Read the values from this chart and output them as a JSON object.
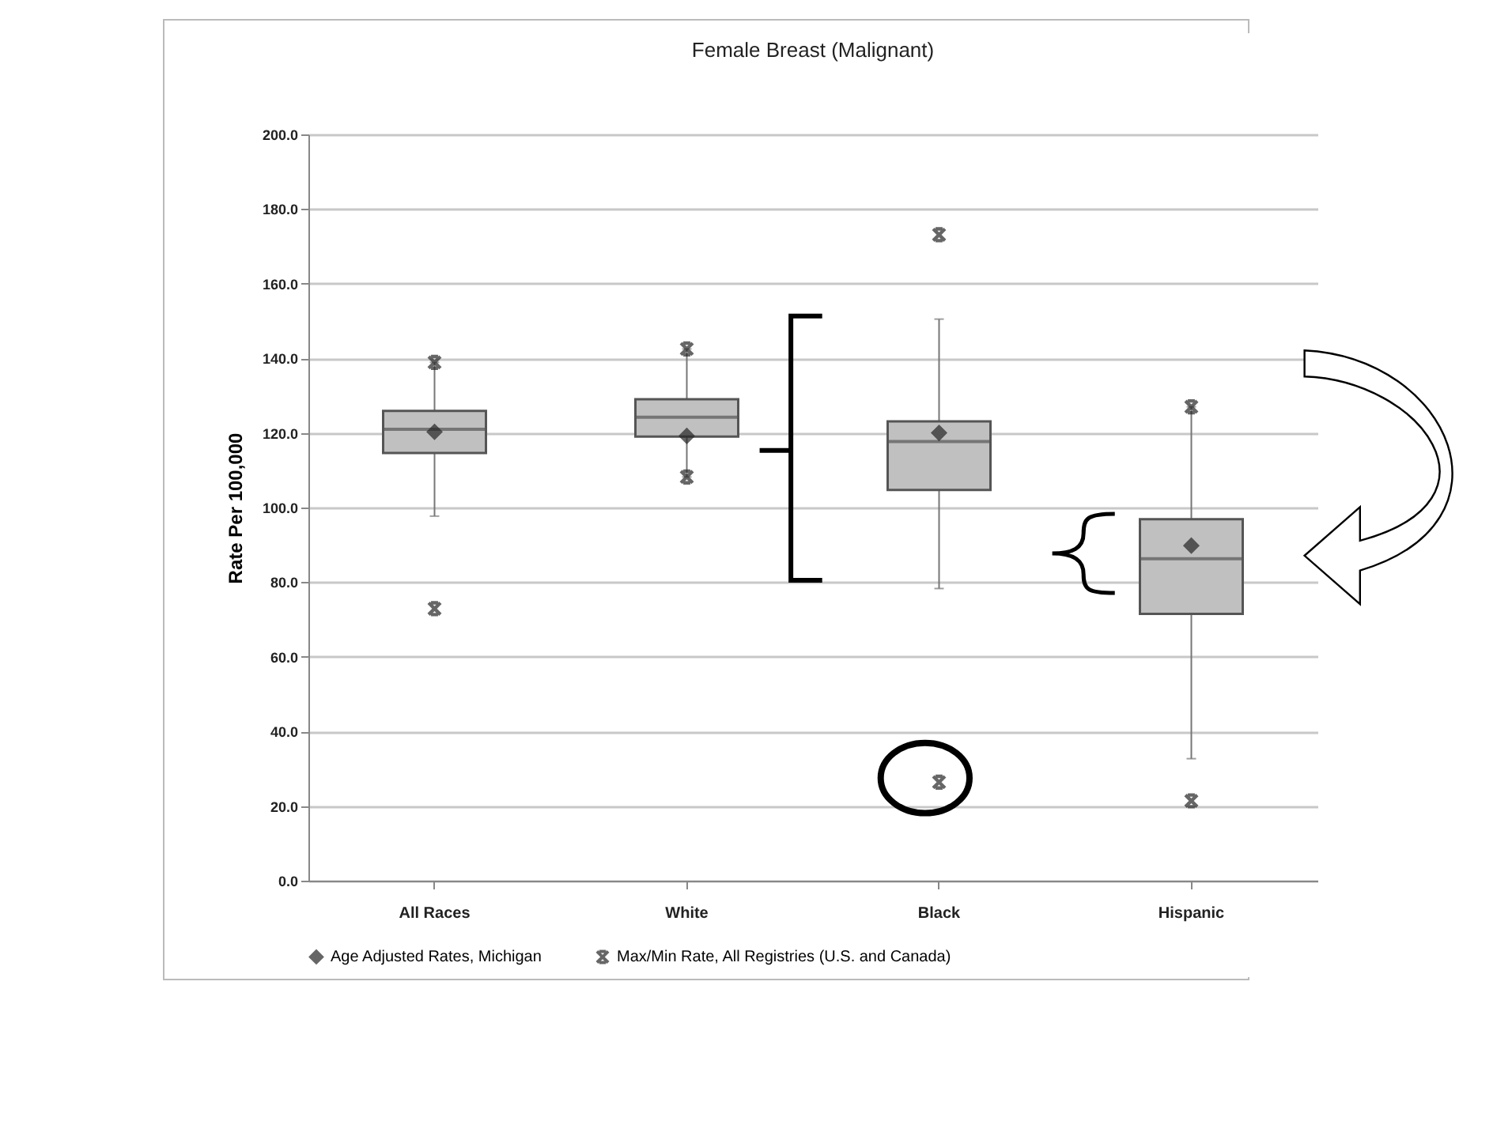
{
  "chart_data": {
    "type": "box",
    "title": "Female Breast (Malignant)",
    "ylabel": "Rate Per 100,000",
    "categories": [
      "All Races",
      "White",
      "Black",
      "Hispanic"
    ],
    "ylim": [
      0,
      200
    ],
    "yticks": [
      {
        "value": 0,
        "label": "0.0"
      },
      {
        "value": 20,
        "label": "20.0"
      },
      {
        "value": 40,
        "label": "40.0"
      },
      {
        "value": 60,
        "label": "60.0"
      },
      {
        "value": 80,
        "label": "80.0"
      },
      {
        "value": 100,
        "label": "100.0"
      },
      {
        "value": 120,
        "label": "120.0"
      },
      {
        "value": 140,
        "label": "140.0"
      },
      {
        "value": 160,
        "label": "160.0"
      },
      {
        "value": 180,
        "label": "180.0"
      },
      {
        "value": 200,
        "label": "200.0"
      }
    ],
    "grid": "y",
    "legend": "bottom",
    "series": [
      {
        "type": "box",
        "color": "#c0c0c0",
        "boxes": [
          {
            "low": 97.7,
            "q1": 114.6,
            "median": 121.0,
            "q3": 125.9,
            "high": 138.9
          },
          {
            "low": 108.2,
            "q1": 119.0,
            "median": 124.2,
            "q3": 129.0,
            "high": 142.5
          },
          {
            "low": 78.3,
            "q1": 104.7,
            "median": 117.7,
            "q3": 123.1,
            "high": 150.5
          },
          {
            "low": 32.7,
            "q1": 71.5,
            "median": 86.3,
            "q3": 96.9,
            "high": 127.0
          }
        ]
      },
      {
        "type": "scatter",
        "name": "Age Adjusted Rates, Michigan",
        "color": "#262626",
        "marker": "diamond",
        "x": [
          "All Races",
          "White",
          "Black",
          "Hispanic"
        ],
        "values": [
          120.3,
          119.2,
          120.0,
          89.8
        ]
      },
      {
        "type": "scatter",
        "name": "Max/Min Rate, All Registries (U.S. and Canada)",
        "color": "#262626",
        "marker": "cross",
        "x": [
          "All Races",
          "White",
          "Black",
          "Hispanic",
          "All Races",
          "White",
          "Black",
          "Hispanic"
        ],
        "values": [
          138.9,
          142.5,
          173.1,
          127.0,
          72.9,
          108.2,
          26.4,
          21.4
        ]
      }
    ]
  }
}
